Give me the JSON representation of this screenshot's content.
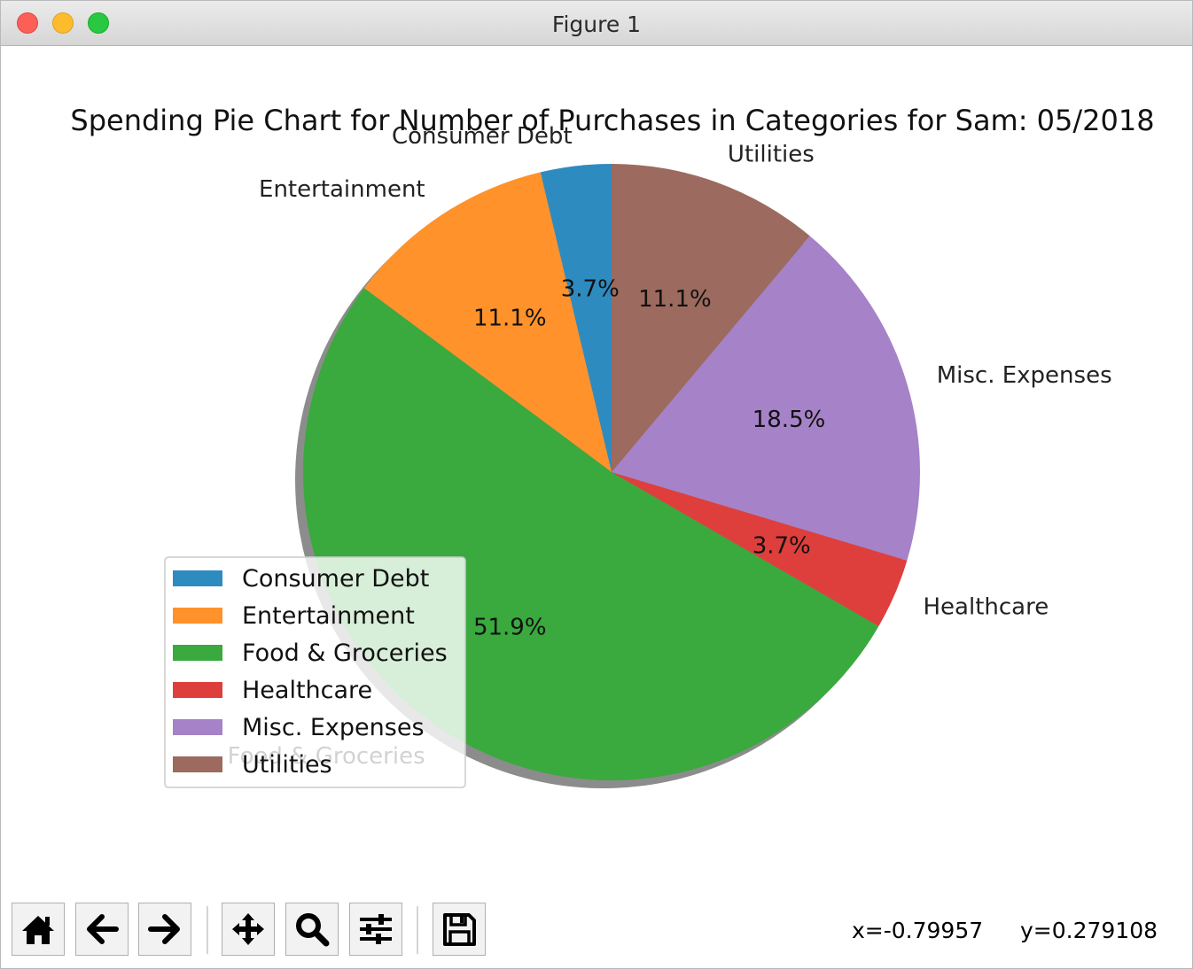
{
  "window": {
    "title": "Figure 1"
  },
  "chart_data": {
    "type": "pie",
    "title": "Spending Pie Chart for Number of Purchases in Categories for Sam: 05/2018",
    "labels": [
      "Consumer Debt",
      "Entertainment",
      "Food & Groceries",
      "Healthcare",
      "Misc. Expenses",
      "Utilities"
    ],
    "values": [
      1,
      3,
      14,
      1,
      5,
      3
    ],
    "percent_labels": [
      "3.7%",
      "11.1%",
      "51.9%",
      "3.7%",
      "18.5%",
      "11.1%"
    ],
    "colors": [
      "#2e8bc0",
      "#ff922b",
      "#3aa93e",
      "#de3f3c",
      "#a682c8",
      "#9c6a5e"
    ],
    "start_angle_deg": 90,
    "direction": "counterclockwise",
    "shadow": true,
    "legend": {
      "position": "lower-left",
      "entries": [
        "Consumer Debt",
        "Entertainment",
        "Food & Groceries",
        "Healthcare",
        "Misc. Expenses",
        "Utilities"
      ]
    }
  },
  "toolbar": {
    "buttons": [
      {
        "name": "home-button",
        "icon": "home-icon"
      },
      {
        "name": "back-button",
        "icon": "arrow-left-icon"
      },
      {
        "name": "forward-button",
        "icon": "arrow-right-icon"
      },
      {
        "name": "pan-button",
        "icon": "move-icon"
      },
      {
        "name": "zoom-button",
        "icon": "magnifier-icon"
      },
      {
        "name": "configure-subplots-button",
        "icon": "sliders-icon"
      },
      {
        "name": "save-button",
        "icon": "floppy-disk-icon"
      }
    ],
    "coord_x": "x=-0.79957",
    "coord_y": "y=0.279108"
  }
}
